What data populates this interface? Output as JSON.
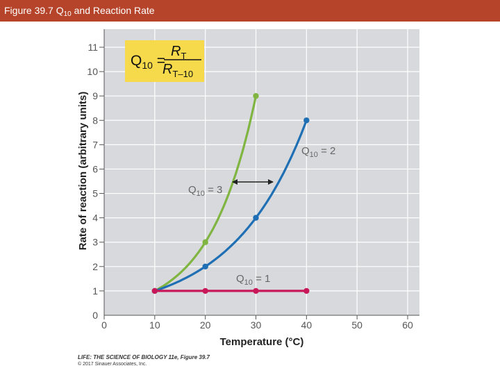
{
  "header": {
    "title_prefix": "Figure 39.7",
    "title_q": "Q",
    "title_sub": "10",
    "title_suffix": "and Reaction Rate"
  },
  "chart_data": {
    "type": "line",
    "xlabel": "Temperature (°C)",
    "ylabel": "Rate of reaction (arbitrary units)",
    "xlim": [
      0,
      60
    ],
    "ylim": [
      0,
      11
    ],
    "xticks": [
      0,
      10,
      20,
      30,
      40,
      50,
      60
    ],
    "yticks": [
      0,
      1,
      2,
      3,
      4,
      5,
      6,
      7,
      8,
      9,
      10,
      11
    ],
    "grid": true,
    "series": [
      {
        "name": "Q10 = 3",
        "color": "#7fb540",
        "x": [
          10,
          20,
          30
        ],
        "y": [
          1,
          3,
          9
        ]
      },
      {
        "name": "Q10 = 2",
        "color": "#1f6fb5",
        "x": [
          10,
          20,
          30,
          40
        ],
        "y": [
          1,
          2,
          4,
          8
        ]
      },
      {
        "name": "Q10 = 1",
        "color": "#c8185a",
        "x": [
          10,
          20,
          30,
          40
        ],
        "y": [
          1,
          1,
          1,
          1
        ]
      }
    ],
    "formula": {
      "lhs": "Q10 =",
      "numerator": "R",
      "numerator_sub": "T",
      "denominator": "R",
      "denominator_sub": "T–10"
    },
    "annotations": {
      "q3": {
        "q": "Q",
        "sub": "10",
        "rest": " = 3"
      },
      "q2": {
        "q": "Q",
        "sub": "10",
        "rest": " = 2"
      },
      "q1": {
        "q": "Q",
        "sub": "10",
        "rest": " = 1"
      }
    },
    "colors": {
      "panel": "#d7d9dc",
      "grid": "#ffffff",
      "formula_box": "#f7d94c",
      "arrow": "#222222"
    }
  },
  "footer": {
    "credit_line1": "LIFE: THE SCIENCE OF BIOLOGY 11e, Figure 39.7",
    "credit_line2": "© 2017 Sinauer Associates, Inc."
  }
}
